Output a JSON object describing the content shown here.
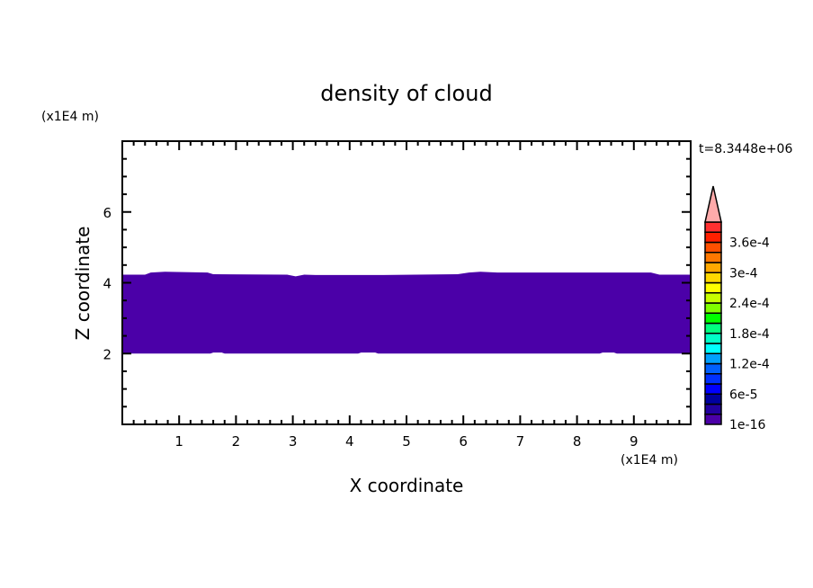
{
  "chart_data": {
    "type": "heatmap",
    "subtype": "filled-contour",
    "title": "density of cloud",
    "xlabel": "X coordinate",
    "ylabel": "Z coordinate",
    "x_unit_label": "(x1E4 m)",
    "y_unit_label": "(x1E4 m)",
    "time_label": "t=8.3448e+06",
    "xlim": [
      0,
      10
    ],
    "ylim": [
      0,
      8
    ],
    "x_ticks": [
      1,
      2,
      3,
      4,
      5,
      6,
      7,
      8,
      9
    ],
    "x_tick_labels": [
      "1",
      "2",
      "3",
      "4",
      "5",
      "6",
      "7",
      "8",
      "9"
    ],
    "y_ticks": [
      2,
      4,
      6
    ],
    "y_tick_labels": [
      "2",
      "4",
      "6"
    ],
    "x_minor_step": 0.2,
    "y_minor_step": 0.5,
    "grid": false,
    "filled_region": {
      "level": "1e-16",
      "color": "#4b00a8",
      "top_boundary": [
        [
          0,
          4.23
        ],
        [
          0.4,
          4.23
        ],
        [
          0.5,
          4.29
        ],
        [
          0.75,
          4.31
        ],
        [
          1.5,
          4.29
        ],
        [
          1.6,
          4.24
        ],
        [
          2.9,
          4.23
        ],
        [
          3.05,
          4.18
        ],
        [
          3.2,
          4.23
        ],
        [
          3.4,
          4.22
        ],
        [
          4.6,
          4.22
        ],
        [
          5.9,
          4.24
        ],
        [
          6.1,
          4.29
        ],
        [
          6.3,
          4.31
        ],
        [
          6.6,
          4.29
        ],
        [
          9.3,
          4.29
        ],
        [
          9.45,
          4.23
        ],
        [
          10,
          4.23
        ]
      ],
      "bottom_boundary": [
        [
          0,
          2.0
        ],
        [
          1.55,
          2.0
        ],
        [
          1.6,
          2.03
        ],
        [
          1.75,
          2.03
        ],
        [
          1.8,
          2.0
        ],
        [
          4.15,
          2.0
        ],
        [
          4.2,
          2.03
        ],
        [
          4.45,
          2.03
        ],
        [
          4.5,
          2.0
        ],
        [
          8.4,
          2.0
        ],
        [
          8.45,
          2.03
        ],
        [
          8.65,
          2.03
        ],
        [
          8.7,
          2.0
        ],
        [
          10,
          2.0
        ]
      ]
    },
    "colorbar": {
      "extend": "max",
      "extend_color": "#ffaaaa",
      "colors": [
        "#4b00a8",
        "#2200a0",
        "#0000a0",
        "#0000ff",
        "#0030ff",
        "#0060ff",
        "#00a0ff",
        "#00ffff",
        "#00ffc8",
        "#00ff80",
        "#00ff00",
        "#80ff00",
        "#c8ff00",
        "#ffff00",
        "#ffd800",
        "#ffa800",
        "#ff7800",
        "#ff5000",
        "#ff2000",
        "#ff3030"
      ],
      "labels": [
        {
          "index": 0,
          "text": "1e-16"
        },
        {
          "index": 3,
          "text": "6e-5"
        },
        {
          "index": 6,
          "text": "1.2e-4"
        },
        {
          "index": 9,
          "text": "1.8e-4"
        },
        {
          "index": 12,
          "text": "2.4e-4"
        },
        {
          "index": 15,
          "text": "3e-4"
        },
        {
          "index": 18,
          "text": "3.6e-4"
        }
      ]
    }
  }
}
